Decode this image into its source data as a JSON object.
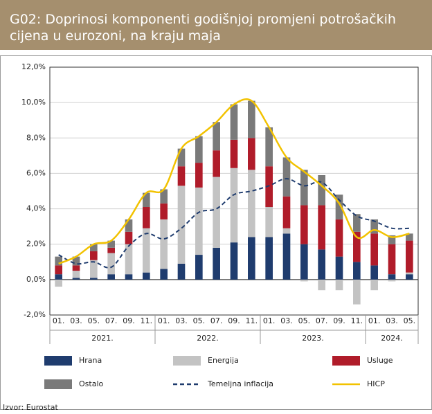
{
  "chart_data": {
    "type": "stacked_bar_line",
    "title": "G02: Doprinosi komponenti godišnjoj promjeni potrošačkih cijena u eurozoni, na kraju maja",
    "source": "Izvor: Eurostat",
    "categories": [
      "01.",
      "03.",
      "05.",
      "07.",
      "09.",
      "11.",
      "01.",
      "03.",
      "05.",
      "07.",
      "09.",
      "11.",
      "01.",
      "03.",
      "05.",
      "07.",
      "09.",
      "11.",
      "01.",
      "03.",
      "05."
    ],
    "groups": [
      {
        "label": "2021.",
        "count": 6
      },
      {
        "label": "2022.",
        "count": 6
      },
      {
        "label": "2023.",
        "count": 6
      },
      {
        "label": "2024.",
        "count": 3
      }
    ],
    "series": [
      {
        "name": "Hrana",
        "kind": "bar",
        "color": "#1f3c6e",
        "values": [
          0.3,
          0.1,
          0.1,
          0.3,
          0.3,
          0.4,
          0.6,
          0.9,
          1.4,
          1.8,
          2.1,
          2.4,
          2.4,
          2.6,
          2.0,
          1.7,
          1.3,
          1.0,
          0.8,
          0.3,
          0.3
        ]
      },
      {
        "name": "Energija",
        "kind": "bar",
        "color": "#c3c3c3",
        "values": [
          -0.4,
          0.4,
          1.0,
          1.2,
          1.7,
          2.5,
          2.8,
          4.4,
          3.8,
          4.0,
          4.2,
          3.8,
          1.7,
          0.3,
          -0.1,
          -0.6,
          -0.6,
          -1.4,
          -0.6,
          -0.1,
          0.1
        ]
      },
      {
        "name": "Usluge",
        "kind": "bar",
        "color": "#b01c2a",
        "values": [
          0.5,
          0.3,
          0.5,
          0.3,
          0.7,
          1.2,
          0.9,
          1.1,
          1.4,
          1.5,
          1.6,
          1.8,
          2.3,
          1.8,
          2.2,
          2.5,
          2.1,
          1.7,
          1.8,
          1.7,
          1.8
        ]
      },
      {
        "name": "Ostalo",
        "kind": "bar",
        "color": "#7a7a7a",
        "values": [
          0.5,
          0.5,
          0.4,
          0.4,
          0.7,
          0.8,
          0.8,
          1.0,
          1.5,
          1.6,
          2.0,
          2.1,
          2.2,
          2.2,
          2.0,
          1.7,
          1.4,
          1.0,
          0.8,
          0.5,
          0.4
        ]
      },
      {
        "name": "Temeljna inflacija",
        "kind": "line",
        "dash": true,
        "color": "#1f3c6e",
        "values": [
          1.4,
          0.9,
          1.0,
          0.7,
          1.9,
          2.6,
          2.3,
          2.9,
          3.8,
          4.0,
          4.8,
          5.0,
          5.3,
          5.7,
          5.3,
          5.5,
          4.5,
          3.6,
          3.3,
          2.9,
          2.9
        ]
      },
      {
        "name": "HICP",
        "kind": "line",
        "color": "#f2c200",
        "values": [
          0.9,
          1.3,
          2.0,
          2.2,
          3.4,
          4.9,
          5.1,
          7.4,
          8.1,
          8.9,
          9.9,
          10.1,
          8.6,
          6.9,
          6.1,
          5.3,
          4.3,
          2.4,
          2.8,
          2.4,
          2.6
        ]
      }
    ],
    "ylim": [
      -2,
      12
    ],
    "yticks": [
      {
        "value": -2,
        "label": "-2,0%"
      },
      {
        "value": 0,
        "label": "0,0%"
      },
      {
        "value": 2,
        "label": "2,0%"
      },
      {
        "value": 4,
        "label": "4,0%"
      },
      {
        "value": 6,
        "label": "6,0%"
      },
      {
        "value": 8,
        "label": "8,0%"
      },
      {
        "value": 10,
        "label": "10,0%"
      },
      {
        "value": 12,
        "label": "12,0%"
      }
    ],
    "grid": true
  }
}
